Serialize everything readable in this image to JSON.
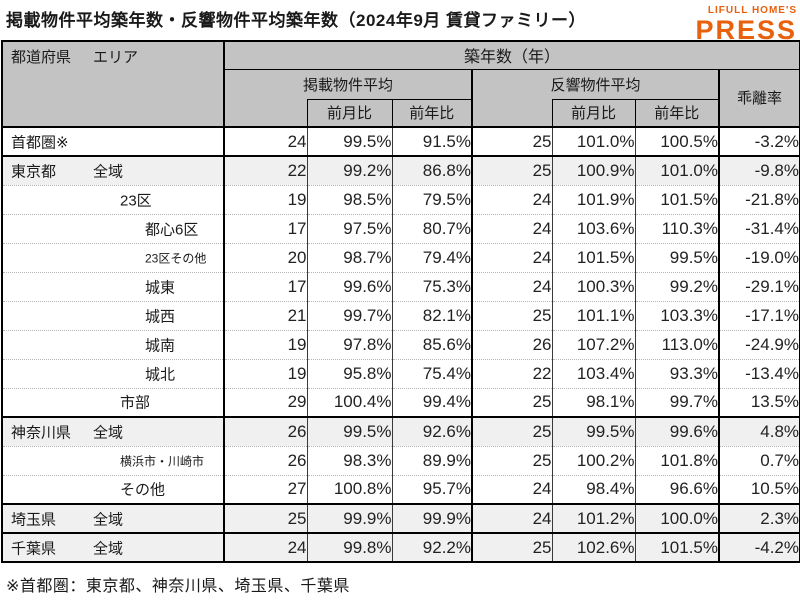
{
  "title": "掲載物件平均築年数・反響物件平均築年数（2024年9月 賃貸ファミリー）",
  "logo": {
    "top": "LIFULL HOME'S",
    "bottom": "PRESS",
    "color": "#E8610D"
  },
  "colors": {
    "accent_orange": "#E8610D",
    "header_bg": "#c3c3c3",
    "shaded_row_bg": "#f0f0f0",
    "border": "#000000"
  },
  "table": {
    "headers": {
      "prefecture": "都道府県",
      "area": "エリア",
      "age_group": "築年数（年）",
      "listed_avg": "掲載物件平均",
      "inquiry_avg": "反響物件平均",
      "mom": "前月比",
      "yoy": "前年比",
      "divergence": "乖離率"
    },
    "rows": [
      {
        "pref": "首都圏※",
        "area": "",
        "indent": 0,
        "small": false,
        "shade": false,
        "sep": "thick",
        "listed": "24",
        "listed_mom": "99.5%",
        "listed_yoy": "91.5%",
        "inquiry": "25",
        "inquiry_mom": "101.0%",
        "inquiry_yoy": "100.5%",
        "divergence": "-3.2%"
      },
      {
        "pref": "東京都",
        "area": "全域",
        "indent": 0,
        "small": false,
        "shade": true,
        "sep": "thick",
        "listed": "22",
        "listed_mom": "99.2%",
        "listed_yoy": "86.8%",
        "inquiry": "25",
        "inquiry_mom": "100.9%",
        "inquiry_yoy": "101.0%",
        "divergence": "-9.8%"
      },
      {
        "pref": "",
        "area": "23区",
        "indent": 1,
        "small": false,
        "shade": false,
        "sep": "dotted",
        "listed": "19",
        "listed_mom": "98.5%",
        "listed_yoy": "79.5%",
        "inquiry": "24",
        "inquiry_mom": "101.9%",
        "inquiry_yoy": "101.5%",
        "divergence": "-21.8%"
      },
      {
        "pref": "",
        "area": "都心6区",
        "indent": 2,
        "small": false,
        "shade": false,
        "sep": "dotted",
        "listed": "17",
        "listed_mom": "97.5%",
        "listed_yoy": "80.7%",
        "inquiry": "24",
        "inquiry_mom": "103.6%",
        "inquiry_yoy": "110.3%",
        "divergence": "-31.4%"
      },
      {
        "pref": "",
        "area": "23区その他",
        "indent": 2,
        "small": true,
        "shade": false,
        "sep": "dotted",
        "listed": "20",
        "listed_mom": "98.7%",
        "listed_yoy": "79.4%",
        "inquiry": "24",
        "inquiry_mom": "101.5%",
        "inquiry_yoy": "99.5%",
        "divergence": "-19.0%"
      },
      {
        "pref": "",
        "area": "城東",
        "indent": 2,
        "small": false,
        "shade": false,
        "sep": "dotted",
        "listed": "17",
        "listed_mom": "99.6%",
        "listed_yoy": "75.3%",
        "inquiry": "24",
        "inquiry_mom": "100.3%",
        "inquiry_yoy": "99.2%",
        "divergence": "-29.1%"
      },
      {
        "pref": "",
        "area": "城西",
        "indent": 2,
        "small": false,
        "shade": false,
        "sep": "dotted",
        "listed": "21",
        "listed_mom": "99.7%",
        "listed_yoy": "82.1%",
        "inquiry": "25",
        "inquiry_mom": "101.1%",
        "inquiry_yoy": "103.3%",
        "divergence": "-17.1%"
      },
      {
        "pref": "",
        "area": "城南",
        "indent": 2,
        "small": false,
        "shade": false,
        "sep": "dotted",
        "listed": "19",
        "listed_mom": "97.8%",
        "listed_yoy": "85.6%",
        "inquiry": "26",
        "inquiry_mom": "107.2%",
        "inquiry_yoy": "113.0%",
        "divergence": "-24.9%"
      },
      {
        "pref": "",
        "area": "城北",
        "indent": 2,
        "small": false,
        "shade": false,
        "sep": "dotted",
        "listed": "19",
        "listed_mom": "95.8%",
        "listed_yoy": "75.4%",
        "inquiry": "22",
        "inquiry_mom": "103.4%",
        "inquiry_yoy": "93.3%",
        "divergence": "-13.4%"
      },
      {
        "pref": "",
        "area": "市部",
        "indent": 1,
        "small": false,
        "shade": false,
        "sep": "dotted",
        "listed": "29",
        "listed_mom": "100.4%",
        "listed_yoy": "99.4%",
        "inquiry": "25",
        "inquiry_mom": "98.1%",
        "inquiry_yoy": "99.7%",
        "divergence": "13.5%"
      },
      {
        "pref": "神奈川県",
        "area": "全域",
        "indent": 0,
        "small": false,
        "shade": true,
        "sep": "thick",
        "listed": "26",
        "listed_mom": "99.5%",
        "listed_yoy": "92.6%",
        "inquiry": "25",
        "inquiry_mom": "99.5%",
        "inquiry_yoy": "99.6%",
        "divergence": "4.8%"
      },
      {
        "pref": "",
        "area": "横浜市・川崎市",
        "indent": 1,
        "small": true,
        "shade": false,
        "sep": "dotted",
        "listed": "26",
        "listed_mom": "98.3%",
        "listed_yoy": "89.9%",
        "inquiry": "25",
        "inquiry_mom": "100.2%",
        "inquiry_yoy": "101.8%",
        "divergence": "0.7%"
      },
      {
        "pref": "",
        "area": "その他",
        "indent": 1,
        "small": false,
        "shade": false,
        "sep": "dotted",
        "listed": "27",
        "listed_mom": "100.8%",
        "listed_yoy": "95.7%",
        "inquiry": "24",
        "inquiry_mom": "98.4%",
        "inquiry_yoy": "96.6%",
        "divergence": "10.5%"
      },
      {
        "pref": "埼玉県",
        "area": "全域",
        "indent": 0,
        "small": false,
        "shade": true,
        "sep": "thick",
        "listed": "25",
        "listed_mom": "99.9%",
        "listed_yoy": "99.9%",
        "inquiry": "24",
        "inquiry_mom": "101.2%",
        "inquiry_yoy": "100.0%",
        "divergence": "2.3%"
      },
      {
        "pref": "千葉県",
        "area": "全域",
        "indent": 0,
        "small": false,
        "shade": true,
        "sep": "thick",
        "listed": "24",
        "listed_mom": "99.8%",
        "listed_yoy": "92.2%",
        "inquiry": "25",
        "inquiry_mom": "102.6%",
        "inquiry_yoy": "101.5%",
        "divergence": "-4.2%"
      }
    ]
  },
  "footnote": "※首都圏：東京都、神奈川県、埼玉県、千葉県",
  "chart_data": {
    "type": "table",
    "title": "掲載物件平均築年数・反響物件平均築年数（2024年9月 賃貸ファミリー）",
    "columns": [
      "都道府県",
      "エリア",
      "掲載物件平均 築年数(年)",
      "掲載 前月比",
      "掲載 前年比",
      "反響物件平均 築年数(年)",
      "反響 前月比",
      "反響 前年比",
      "乖離率"
    ],
    "rows": [
      [
        "首都圏※",
        "",
        24,
        "99.5%",
        "91.5%",
        25,
        "101.0%",
        "100.5%",
        "-3.2%"
      ],
      [
        "東京都",
        "全域",
        22,
        "99.2%",
        "86.8%",
        25,
        "100.9%",
        "101.0%",
        "-9.8%"
      ],
      [
        "",
        "23区",
        19,
        "98.5%",
        "79.5%",
        24,
        "101.9%",
        "101.5%",
        "-21.8%"
      ],
      [
        "",
        "都心6区",
        17,
        "97.5%",
        "80.7%",
        24,
        "103.6%",
        "110.3%",
        "-31.4%"
      ],
      [
        "",
        "23区その他",
        20,
        "98.7%",
        "79.4%",
        24,
        "101.5%",
        "99.5%",
        "-19.0%"
      ],
      [
        "",
        "城東",
        17,
        "99.6%",
        "75.3%",
        24,
        "100.3%",
        "99.2%",
        "-29.1%"
      ],
      [
        "",
        "城西",
        21,
        "99.7%",
        "82.1%",
        25,
        "101.1%",
        "103.3%",
        "-17.1%"
      ],
      [
        "",
        "城南",
        19,
        "97.8%",
        "85.6%",
        26,
        "107.2%",
        "113.0%",
        "-24.9%"
      ],
      [
        "",
        "城北",
        19,
        "95.8%",
        "75.4%",
        22,
        "103.4%",
        "93.3%",
        "-13.4%"
      ],
      [
        "",
        "市部",
        29,
        "100.4%",
        "99.4%",
        25,
        "98.1%",
        "99.7%",
        "13.5%"
      ],
      [
        "神奈川県",
        "全域",
        26,
        "99.5%",
        "92.6%",
        25,
        "99.5%",
        "99.6%",
        "4.8%"
      ],
      [
        "",
        "横浜市・川崎市",
        26,
        "98.3%",
        "89.9%",
        25,
        "100.2%",
        "101.8%",
        "0.7%"
      ],
      [
        "",
        "その他",
        27,
        "100.8%",
        "95.7%",
        24,
        "98.4%",
        "96.6%",
        "10.5%"
      ],
      [
        "埼玉県",
        "全域",
        25,
        "99.9%",
        "99.9%",
        24,
        "101.2%",
        "100.0%",
        "2.3%"
      ],
      [
        "千葉県",
        "全域",
        24,
        "99.8%",
        "92.2%",
        25,
        "102.6%",
        "101.5%",
        "-4.2%"
      ]
    ],
    "footnote": "※首都圏：東京都、神奈川県、埼玉県、千葉県"
  }
}
